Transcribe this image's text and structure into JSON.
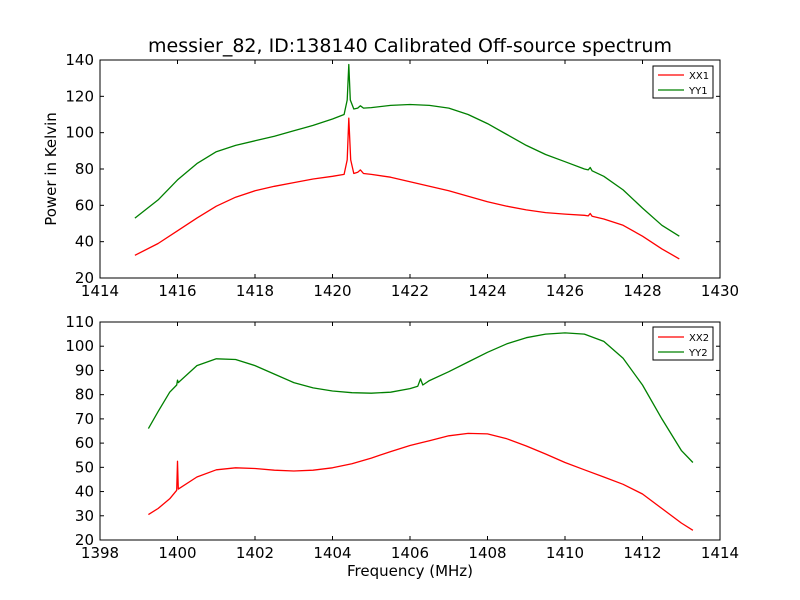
{
  "chart_data": [
    {
      "type": "line",
      "title": "messier_82, ID:138140 Calibrated Off-source spectrum",
      "xlabel": "",
      "ylabel": "Power in Kelvin",
      "xlim": [
        1414,
        1430
      ],
      "ylim": [
        20,
        140
      ],
      "xticks": [
        "1414",
        "1416",
        "1418",
        "1420",
        "1422",
        "1424",
        "1426",
        "1428",
        "1430"
      ],
      "yticks": [
        "20",
        "40",
        "60",
        "80",
        "100",
        "120",
        "140"
      ],
      "legend_position": "top-right",
      "series": [
        {
          "name": "XX1",
          "color": "#ff0000",
          "points": [
            [
              1414.9,
              32.5
            ],
            [
              1415.5,
              39
            ],
            [
              1416,
              46
            ],
            [
              1416.5,
              53
            ],
            [
              1417,
              59.5
            ],
            [
              1417.5,
              64.5
            ],
            [
              1418,
              68
            ],
            [
              1418.5,
              70.5
            ],
            [
              1419,
              72.5
            ],
            [
              1419.5,
              74.5
            ],
            [
              1420,
              76
            ],
            [
              1420.3,
              77
            ],
            [
              1420.38,
              85
            ],
            [
              1420.42,
              108
            ],
            [
              1420.47,
              85
            ],
            [
              1420.55,
              77.5
            ],
            [
              1420.65,
              78.2
            ],
            [
              1420.72,
              79.5
            ],
            [
              1420.8,
              77.5
            ],
            [
              1421,
              77
            ],
            [
              1421.5,
              75.5
            ],
            [
              1422,
              73
            ],
            [
              1422.5,
              70.5
            ],
            [
              1423,
              68
            ],
            [
              1423.5,
              65
            ],
            [
              1424,
              62
            ],
            [
              1424.5,
              59.5
            ],
            [
              1425,
              57.5
            ],
            [
              1425.5,
              56
            ],
            [
              1426,
              55.2
            ],
            [
              1426.5,
              54.5
            ],
            [
              1426.6,
              54.2
            ],
            [
              1426.65,
              55.5
            ],
            [
              1426.7,
              54
            ],
            [
              1427,
              52.5
            ],
            [
              1427.5,
              49
            ],
            [
              1428,
              43
            ],
            [
              1428.5,
              36
            ],
            [
              1428.95,
              30.5
            ]
          ]
        },
        {
          "name": "YY1",
          "color": "#008000",
          "points": [
            [
              1414.9,
              53
            ],
            [
              1415.5,
              63
            ],
            [
              1416,
              74
            ],
            [
              1416.5,
              83
            ],
            [
              1417,
              89.5
            ],
            [
              1417.5,
              93
            ],
            [
              1418,
              95.5
            ],
            [
              1418.5,
              98
            ],
            [
              1419,
              101
            ],
            [
              1419.5,
              104
            ],
            [
              1420,
              107.5
            ],
            [
              1420.3,
              110
            ],
            [
              1420.38,
              118
            ],
            [
              1420.42,
              137.5
            ],
            [
              1420.46,
              118
            ],
            [
              1420.55,
              113
            ],
            [
              1420.65,
              113.5
            ],
            [
              1420.72,
              114.8
            ],
            [
              1420.8,
              113.5
            ],
            [
              1421,
              113.8
            ],
            [
              1421.5,
              115
            ],
            [
              1422,
              115.5
            ],
            [
              1422.5,
              115
            ],
            [
              1423,
              113.5
            ],
            [
              1423.5,
              110
            ],
            [
              1424,
              105
            ],
            [
              1424.5,
              99
            ],
            [
              1425,
              93
            ],
            [
              1425.5,
              88
            ],
            [
              1426,
              84
            ],
            [
              1426.5,
              80
            ],
            [
              1426.6,
              79.5
            ],
            [
              1426.65,
              80.8
            ],
            [
              1426.7,
              79
            ],
            [
              1427,
              76
            ],
            [
              1427.5,
              68.5
            ],
            [
              1428,
              58.5
            ],
            [
              1428.5,
              49
            ],
            [
              1428.95,
              43
            ]
          ]
        }
      ]
    },
    {
      "type": "line",
      "title": "",
      "xlabel": "Frequency (MHz)",
      "ylabel": "",
      "xlim": [
        1398,
        1414
      ],
      "ylim": [
        20,
        110
      ],
      "xticks": [
        "1398",
        "1400",
        "1402",
        "1404",
        "1406",
        "1408",
        "1410",
        "1412",
        "1414"
      ],
      "yticks": [
        "20",
        "30",
        "40",
        "50",
        "60",
        "70",
        "80",
        "90",
        "100",
        "110"
      ],
      "legend_position": "top-right",
      "series": [
        {
          "name": "XX2",
          "color": "#ff0000",
          "points": [
            [
              1399.25,
              30.5
            ],
            [
              1399.5,
              33
            ],
            [
              1399.8,
              37
            ],
            [
              1399.98,
              40.5
            ],
            [
              1400,
              52.5
            ],
            [
              1400.02,
              41
            ],
            [
              1400.5,
              46
            ],
            [
              1401,
              49
            ],
            [
              1401.5,
              49.8
            ],
            [
              1402,
              49.5
            ],
            [
              1402.5,
              48.8
            ],
            [
              1403,
              48.5
            ],
            [
              1403.5,
              48.8
            ],
            [
              1404,
              49.8
            ],
            [
              1404.5,
              51.5
            ],
            [
              1405,
              53.8
            ],
            [
              1405.5,
              56.5
            ],
            [
              1406,
              59
            ],
            [
              1406.3,
              60.2
            ],
            [
              1406.5,
              61
            ],
            [
              1407,
              63
            ],
            [
              1407.5,
              64
            ],
            [
              1408,
              63.8
            ],
            [
              1408.5,
              61.8
            ],
            [
              1409,
              58.8
            ],
            [
              1409.5,
              55.5
            ],
            [
              1410,
              52
            ],
            [
              1410.5,
              49
            ],
            [
              1411,
              46
            ],
            [
              1411.5,
              43
            ],
            [
              1412,
              39
            ],
            [
              1412.5,
              33
            ],
            [
              1413,
              27
            ],
            [
              1413.3,
              24
            ]
          ]
        },
        {
          "name": "YY2",
          "color": "#008000",
          "points": [
            [
              1399.25,
              66
            ],
            [
              1399.5,
              73
            ],
            [
              1399.8,
              81
            ],
            [
              1399.98,
              84
            ],
            [
              1400,
              86
            ],
            [
              1400.02,
              85
            ],
            [
              1400.5,
              92
            ],
            [
              1401,
              94.8
            ],
            [
              1401.5,
              94.5
            ],
            [
              1402,
              92
            ],
            [
              1402.5,
              88.5
            ],
            [
              1403,
              85
            ],
            [
              1403.5,
              82.8
            ],
            [
              1404,
              81.5
            ],
            [
              1404.5,
              80.8
            ],
            [
              1405,
              80.6
            ],
            [
              1405.5,
              81
            ],
            [
              1406,
              82.5
            ],
            [
              1406.2,
              83.5
            ],
            [
              1406.27,
              86.5
            ],
            [
              1406.33,
              84
            ],
            [
              1406.5,
              85.8
            ],
            [
              1407,
              89.5
            ],
            [
              1407.5,
              93.5
            ],
            [
              1408,
              97.5
            ],
            [
              1408.5,
              101
            ],
            [
              1409,
              103.5
            ],
            [
              1409.5,
              105
            ],
            [
              1410,
              105.5
            ],
            [
              1410.5,
              105
            ],
            [
              1411,
              102
            ],
            [
              1411.5,
              95
            ],
            [
              1412,
              84
            ],
            [
              1412.5,
              70
            ],
            [
              1413,
              57
            ],
            [
              1413.3,
              52
            ]
          ]
        }
      ]
    }
  ]
}
